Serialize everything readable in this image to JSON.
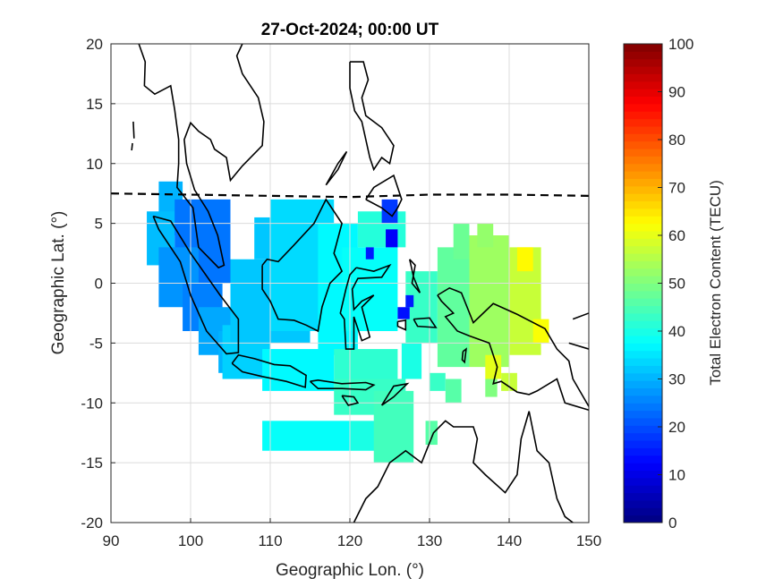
{
  "chart_data": {
    "type": "heatmap",
    "title": "27-Oct-2024; 00:00 UT",
    "xlabel": "Geographic Lon. (°)",
    "ylabel": "Geographic Lat. (°)",
    "xlim": [
      90,
      150
    ],
    "ylim": [
      -20,
      20
    ],
    "xticks": [
      "90",
      "100",
      "110",
      "120",
      "130",
      "140",
      "150"
    ],
    "yticks": [
      "20",
      "15",
      "10",
      "5",
      "0",
      "-5",
      "-10",
      "-15",
      "-20"
    ],
    "grid": true,
    "colorbar": {
      "label": "Total Electron Content (TECU)",
      "range": [
        0,
        100
      ],
      "colormap": "jet",
      "ticks": [
        "0",
        "10",
        "20",
        "30",
        "40",
        "50",
        "60",
        "70",
        "80",
        "90",
        "100"
      ],
      "placement": "right"
    },
    "dashed_line_lat": [
      [
        90,
        7.5
      ],
      [
        110,
        7.3
      ],
      [
        120,
        7.2
      ],
      [
        130,
        7.4
      ],
      [
        140,
        7.4
      ],
      [
        150,
        7.3
      ]
    ],
    "cells": [
      {
        "lon": [
          96,
          99
        ],
        "lat": [
          4,
          8.5
        ],
        "tec": 30
      },
      {
        "lon": [
          94.5,
          98
        ],
        "lat": [
          1.5,
          6
        ],
        "tec": 31
      },
      {
        "lon": [
          98,
          105
        ],
        "lat": [
          0,
          7
        ],
        "tec": 24
      },
      {
        "lon": [
          96,
          101
        ],
        "lat": [
          -2,
          3
        ],
        "tec": 27
      },
      {
        "lon": [
          99,
          104
        ],
        "lat": [
          -4,
          0
        ],
        "tec": 25
      },
      {
        "lon": [
          101,
          106
        ],
        "lat": [
          -6,
          -2
        ],
        "tec": 29
      },
      {
        "lon": [
          103.5,
          106
        ],
        "lat": [
          -7.5,
          -4
        ],
        "tec": 30
      },
      {
        "lon": [
          104,
          110
        ],
        "lat": [
          -8,
          -3.5
        ],
        "tec": 33
      },
      {
        "lon": [
          105,
          115
        ],
        "lat": [
          -5,
          2
        ],
        "tec": 32
      },
      {
        "lon": [
          108,
          113
        ],
        "lat": [
          2,
          5.5
        ],
        "tec": 32
      },
      {
        "lon": [
          110,
          118
        ],
        "lat": [
          -4,
          7
        ],
        "tec": 34
      },
      {
        "lon": [
          116,
          121
        ],
        "lat": [
          -6,
          5
        ],
        "tec": 37
      },
      {
        "lon": [
          109,
          118
        ],
        "lat": [
          -9,
          -5.5
        ],
        "tec": 37
      },
      {
        "lon": [
          118,
          126
        ],
        "lat": [
          -9,
          -5.5
        ],
        "tec": 42
      },
      {
        "lon": [
          118,
          127
        ],
        "lat": [
          -11,
          -8
        ],
        "tec": 43
      },
      {
        "lon": [
          119,
          126
        ],
        "lat": [
          -4,
          3
        ],
        "tec": 38
      },
      {
        "lon": [
          121,
          127
        ],
        "lat": [
          3,
          6
        ],
        "tec": 41
      },
      {
        "lon": [
          124,
          126
        ],
        "lat": [
          5,
          7
        ],
        "tec": 18
      },
      {
        "lon": [
          127,
          131
        ],
        "lat": [
          -5,
          1
        ],
        "tec": 43
      },
      {
        "lon": [
          126.5,
          129
        ],
        "lat": [
          -8,
          -5
        ],
        "tec": 40
      },
      {
        "lon": [
          131,
          135
        ],
        "lat": [
          -7,
          3
        ],
        "tec": 47
      },
      {
        "lon": [
          133,
          135
        ],
        "lat": [
          2,
          5
        ],
        "tec": 48
      },
      {
        "lon": [
          135,
          140
        ],
        "lat": [
          -7,
          4
        ],
        "tec": 53
      },
      {
        "lon": [
          136,
          138
        ],
        "lat": [
          3,
          5
        ],
        "tec": 52
      },
      {
        "lon": [
          140,
          144
        ],
        "lat": [
          -6,
          3
        ],
        "tec": 57
      },
      {
        "lon": [
          141,
          143
        ],
        "lat": [
          1,
          3
        ],
        "tec": 63
      },
      {
        "lon": [
          143,
          145
        ],
        "lat": [
          -5,
          -3
        ],
        "tec": 62
      },
      {
        "lon": [
          137,
          139
        ],
        "lat": [
          -8,
          -6
        ],
        "tec": 60
      },
      {
        "lon": [
          139,
          141
        ],
        "lat": [
          -9,
          -7.5
        ],
        "tec": 57
      },
      {
        "lon": [
          137,
          138.5
        ],
        "lat": [
          -9.5,
          -8
        ],
        "tec": 50
      },
      {
        "lon": [
          130,
          132
        ],
        "lat": [
          -9,
          -7.5
        ],
        "tec": 43
      },
      {
        "lon": [
          132,
          134
        ],
        "lat": [
          -10,
          -8
        ],
        "tec": 46
      },
      {
        "lon": [
          127,
          128
        ],
        "lat": [
          -2,
          -1
        ],
        "tec": 15
      },
      {
        "lon": [
          122,
          123
        ],
        "lat": [
          2,
          3
        ],
        "tec": 15
      },
      {
        "lon": [
          124.5,
          126
        ],
        "lat": [
          3,
          4.5
        ],
        "tec": 12
      },
      {
        "lon": [
          126,
          127.5
        ],
        "lat": [
          -3,
          -2
        ],
        "tec": 14
      },
      {
        "lon": [
          109,
          120
        ],
        "lat": [
          -14,
          -11.5
        ],
        "tec": 38
      },
      {
        "lon": [
          120,
          125
        ],
        "lat": [
          -14,
          -11.5
        ],
        "tec": 40
      },
      {
        "lon": [
          123,
          128
        ],
        "lat": [
          -15,
          -9
        ],
        "tec": 44
      },
      {
        "lon": [
          129.5,
          131
        ],
        "lat": [
          -13.5,
          -11.5
        ],
        "tec": 46
      }
    ]
  }
}
